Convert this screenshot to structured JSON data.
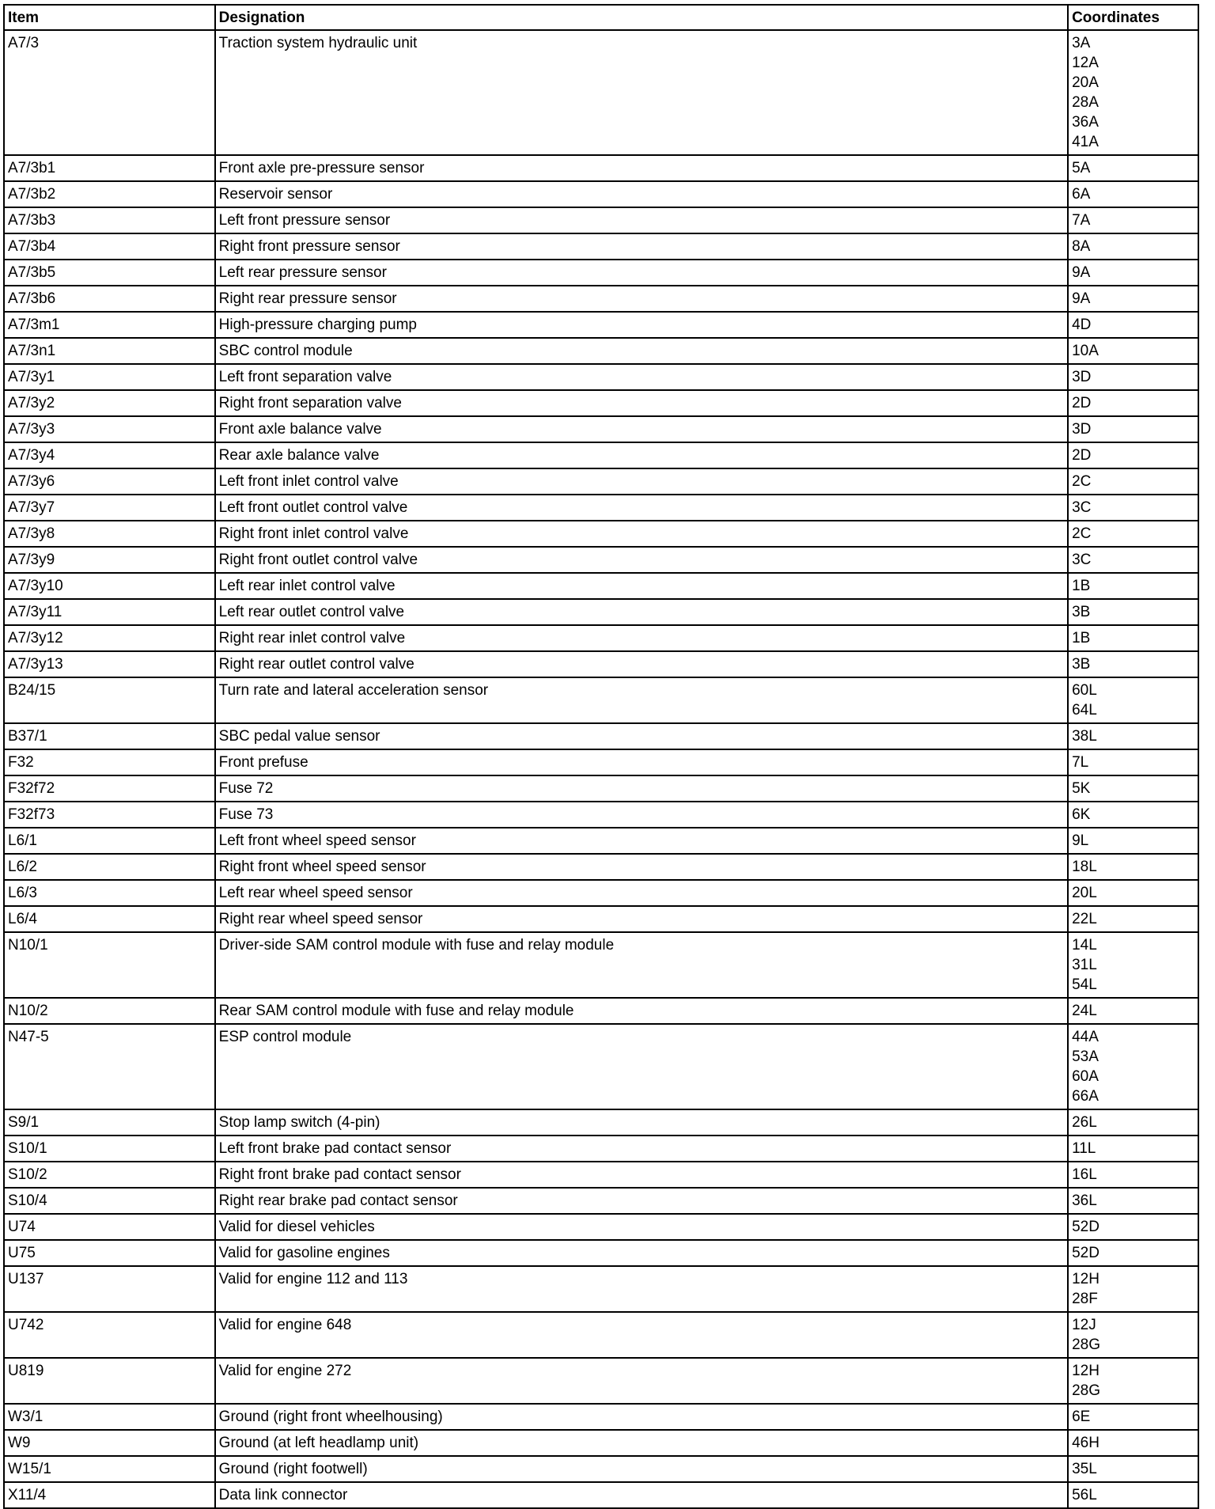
{
  "headers": {
    "item": "Item",
    "designation": "Designation",
    "coordinates": "Coordinates"
  },
  "rows": [
    {
      "item": "A7/3",
      "designation": "Traction system hydraulic unit",
      "coordinates": [
        "3A",
        "12A",
        "20A",
        "28A",
        "36A",
        "41A"
      ]
    },
    {
      "item": "A7/3b1",
      "designation": "Front axle pre-pressure sensor",
      "coordinates": [
        "5A"
      ]
    },
    {
      "item": "A7/3b2",
      "designation": "Reservoir sensor",
      "coordinates": [
        "6A"
      ]
    },
    {
      "item": "A7/3b3",
      "designation": "Left front pressure sensor",
      "coordinates": [
        "7A"
      ]
    },
    {
      "item": "A7/3b4",
      "designation": "Right front pressure sensor",
      "coordinates": [
        "8A"
      ]
    },
    {
      "item": "A7/3b5",
      "designation": "Left rear pressure sensor",
      "coordinates": [
        "9A"
      ]
    },
    {
      "item": "A7/3b6",
      "designation": "Right rear pressure sensor",
      "coordinates": [
        "9A"
      ]
    },
    {
      "item": "A7/3m1",
      "designation": "High-pressure charging pump",
      "coordinates": [
        "4D"
      ]
    },
    {
      "item": "A7/3n1",
      "designation": "SBC control module",
      "coordinates": [
        "10A"
      ]
    },
    {
      "item": "A7/3y1",
      "designation": "Left front separation valve",
      "coordinates": [
        "3D"
      ]
    },
    {
      "item": "A7/3y2",
      "designation": "Right front separation valve",
      "coordinates": [
        "2D"
      ]
    },
    {
      "item": "A7/3y3",
      "designation": "Front axle balance valve",
      "coordinates": [
        "3D"
      ]
    },
    {
      "item": "A7/3y4",
      "designation": "Rear axle balance valve",
      "coordinates": [
        "2D"
      ]
    },
    {
      "item": "A7/3y6",
      "designation": "Left front inlet control valve",
      "coordinates": [
        "2C"
      ]
    },
    {
      "item": "A7/3y7",
      "designation": "Left front outlet control valve",
      "coordinates": [
        "3C"
      ]
    },
    {
      "item": "A7/3y8",
      "designation": "Right front inlet control valve",
      "coordinates": [
        "2C"
      ]
    },
    {
      "item": "A7/3y9",
      "designation": "Right front outlet control valve",
      "coordinates": [
        "3C"
      ]
    },
    {
      "item": "A7/3y10",
      "designation": "Left rear inlet control valve",
      "coordinates": [
        "1B"
      ]
    },
    {
      "item": "A7/3y11",
      "designation": "Left rear outlet control valve",
      "coordinates": [
        "3B"
      ]
    },
    {
      "item": "A7/3y12",
      "designation": "Right rear inlet control valve",
      "coordinates": [
        "1B"
      ]
    },
    {
      "item": "A7/3y13",
      "designation": "Right rear outlet control valve",
      "coordinates": [
        "3B"
      ]
    },
    {
      "item": "B24/15",
      "designation": "Turn rate and lateral acceleration sensor",
      "coordinates": [
        "60L",
        "64L"
      ]
    },
    {
      "item": "B37/1",
      "designation": "SBC pedal value sensor",
      "coordinates": [
        "38L"
      ]
    },
    {
      "item": "F32",
      "designation": "Front prefuse",
      "coordinates": [
        "7L"
      ]
    },
    {
      "item": "F32f72",
      "designation": "Fuse 72",
      "coordinates": [
        "5K"
      ]
    },
    {
      "item": "F32f73",
      "designation": "Fuse 73",
      "coordinates": [
        "6K"
      ]
    },
    {
      "item": "L6/1",
      "designation": "Left front wheel speed sensor",
      "coordinates": [
        "9L"
      ]
    },
    {
      "item": "L6/2",
      "designation": "Right front wheel speed sensor",
      "coordinates": [
        "18L"
      ]
    },
    {
      "item": "L6/3",
      "designation": "Left rear wheel speed sensor",
      "coordinates": [
        "20L"
      ]
    },
    {
      "item": "L6/4",
      "designation": "Right rear wheel speed sensor",
      "coordinates": [
        "22L"
      ]
    },
    {
      "item": "N10/1",
      "designation": "Driver-side SAM control module with fuse and relay module",
      "coordinates": [
        "14L",
        "31L",
        "54L"
      ]
    },
    {
      "item": "N10/2",
      "designation": "Rear SAM control module with fuse and relay module",
      "coordinates": [
        "24L"
      ]
    },
    {
      "item": "N47-5",
      "designation": "ESP control module",
      "coordinates": [
        "44A",
        "53A",
        "60A",
        "66A"
      ]
    },
    {
      "item": "S9/1",
      "designation": "Stop lamp switch (4-pin)",
      "coordinates": [
        "26L"
      ]
    },
    {
      "item": "S10/1",
      "designation": "Left front brake pad contact sensor",
      "coordinates": [
        "11L"
      ]
    },
    {
      "item": "S10/2",
      "designation": "Right front brake pad contact sensor",
      "coordinates": [
        "16L"
      ]
    },
    {
      "item": "S10/4",
      "designation": "Right rear brake pad contact sensor",
      "coordinates": [
        "36L"
      ]
    },
    {
      "item": "U74",
      "designation": "Valid for diesel vehicles",
      "coordinates": [
        "52D"
      ]
    },
    {
      "item": "U75",
      "designation": "Valid for gasoline engines",
      "coordinates": [
        "52D"
      ]
    },
    {
      "item": "U137",
      "designation": "Valid for engine 112 and 113",
      "coordinates": [
        "12H",
        "28F"
      ]
    },
    {
      "item": "U742",
      "designation": "Valid for engine 648",
      "coordinates": [
        "12J",
        "28G"
      ]
    },
    {
      "item": "U819",
      "designation": "Valid for engine 272",
      "coordinates": [
        "12H",
        "28G"
      ]
    },
    {
      "item": "W3/1",
      "designation": "Ground (right front wheelhousing)",
      "coordinates": [
        "6E"
      ]
    },
    {
      "item": "W9",
      "designation": "Ground (at left headlamp unit)",
      "coordinates": [
        "46H"
      ]
    },
    {
      "item": "W15/1",
      "designation": "Ground (right footwell)",
      "coordinates": [
        "35L"
      ]
    },
    {
      "item": "X11/4",
      "designation": "Data link connector",
      "coordinates": [
        "56L"
      ]
    }
  ]
}
